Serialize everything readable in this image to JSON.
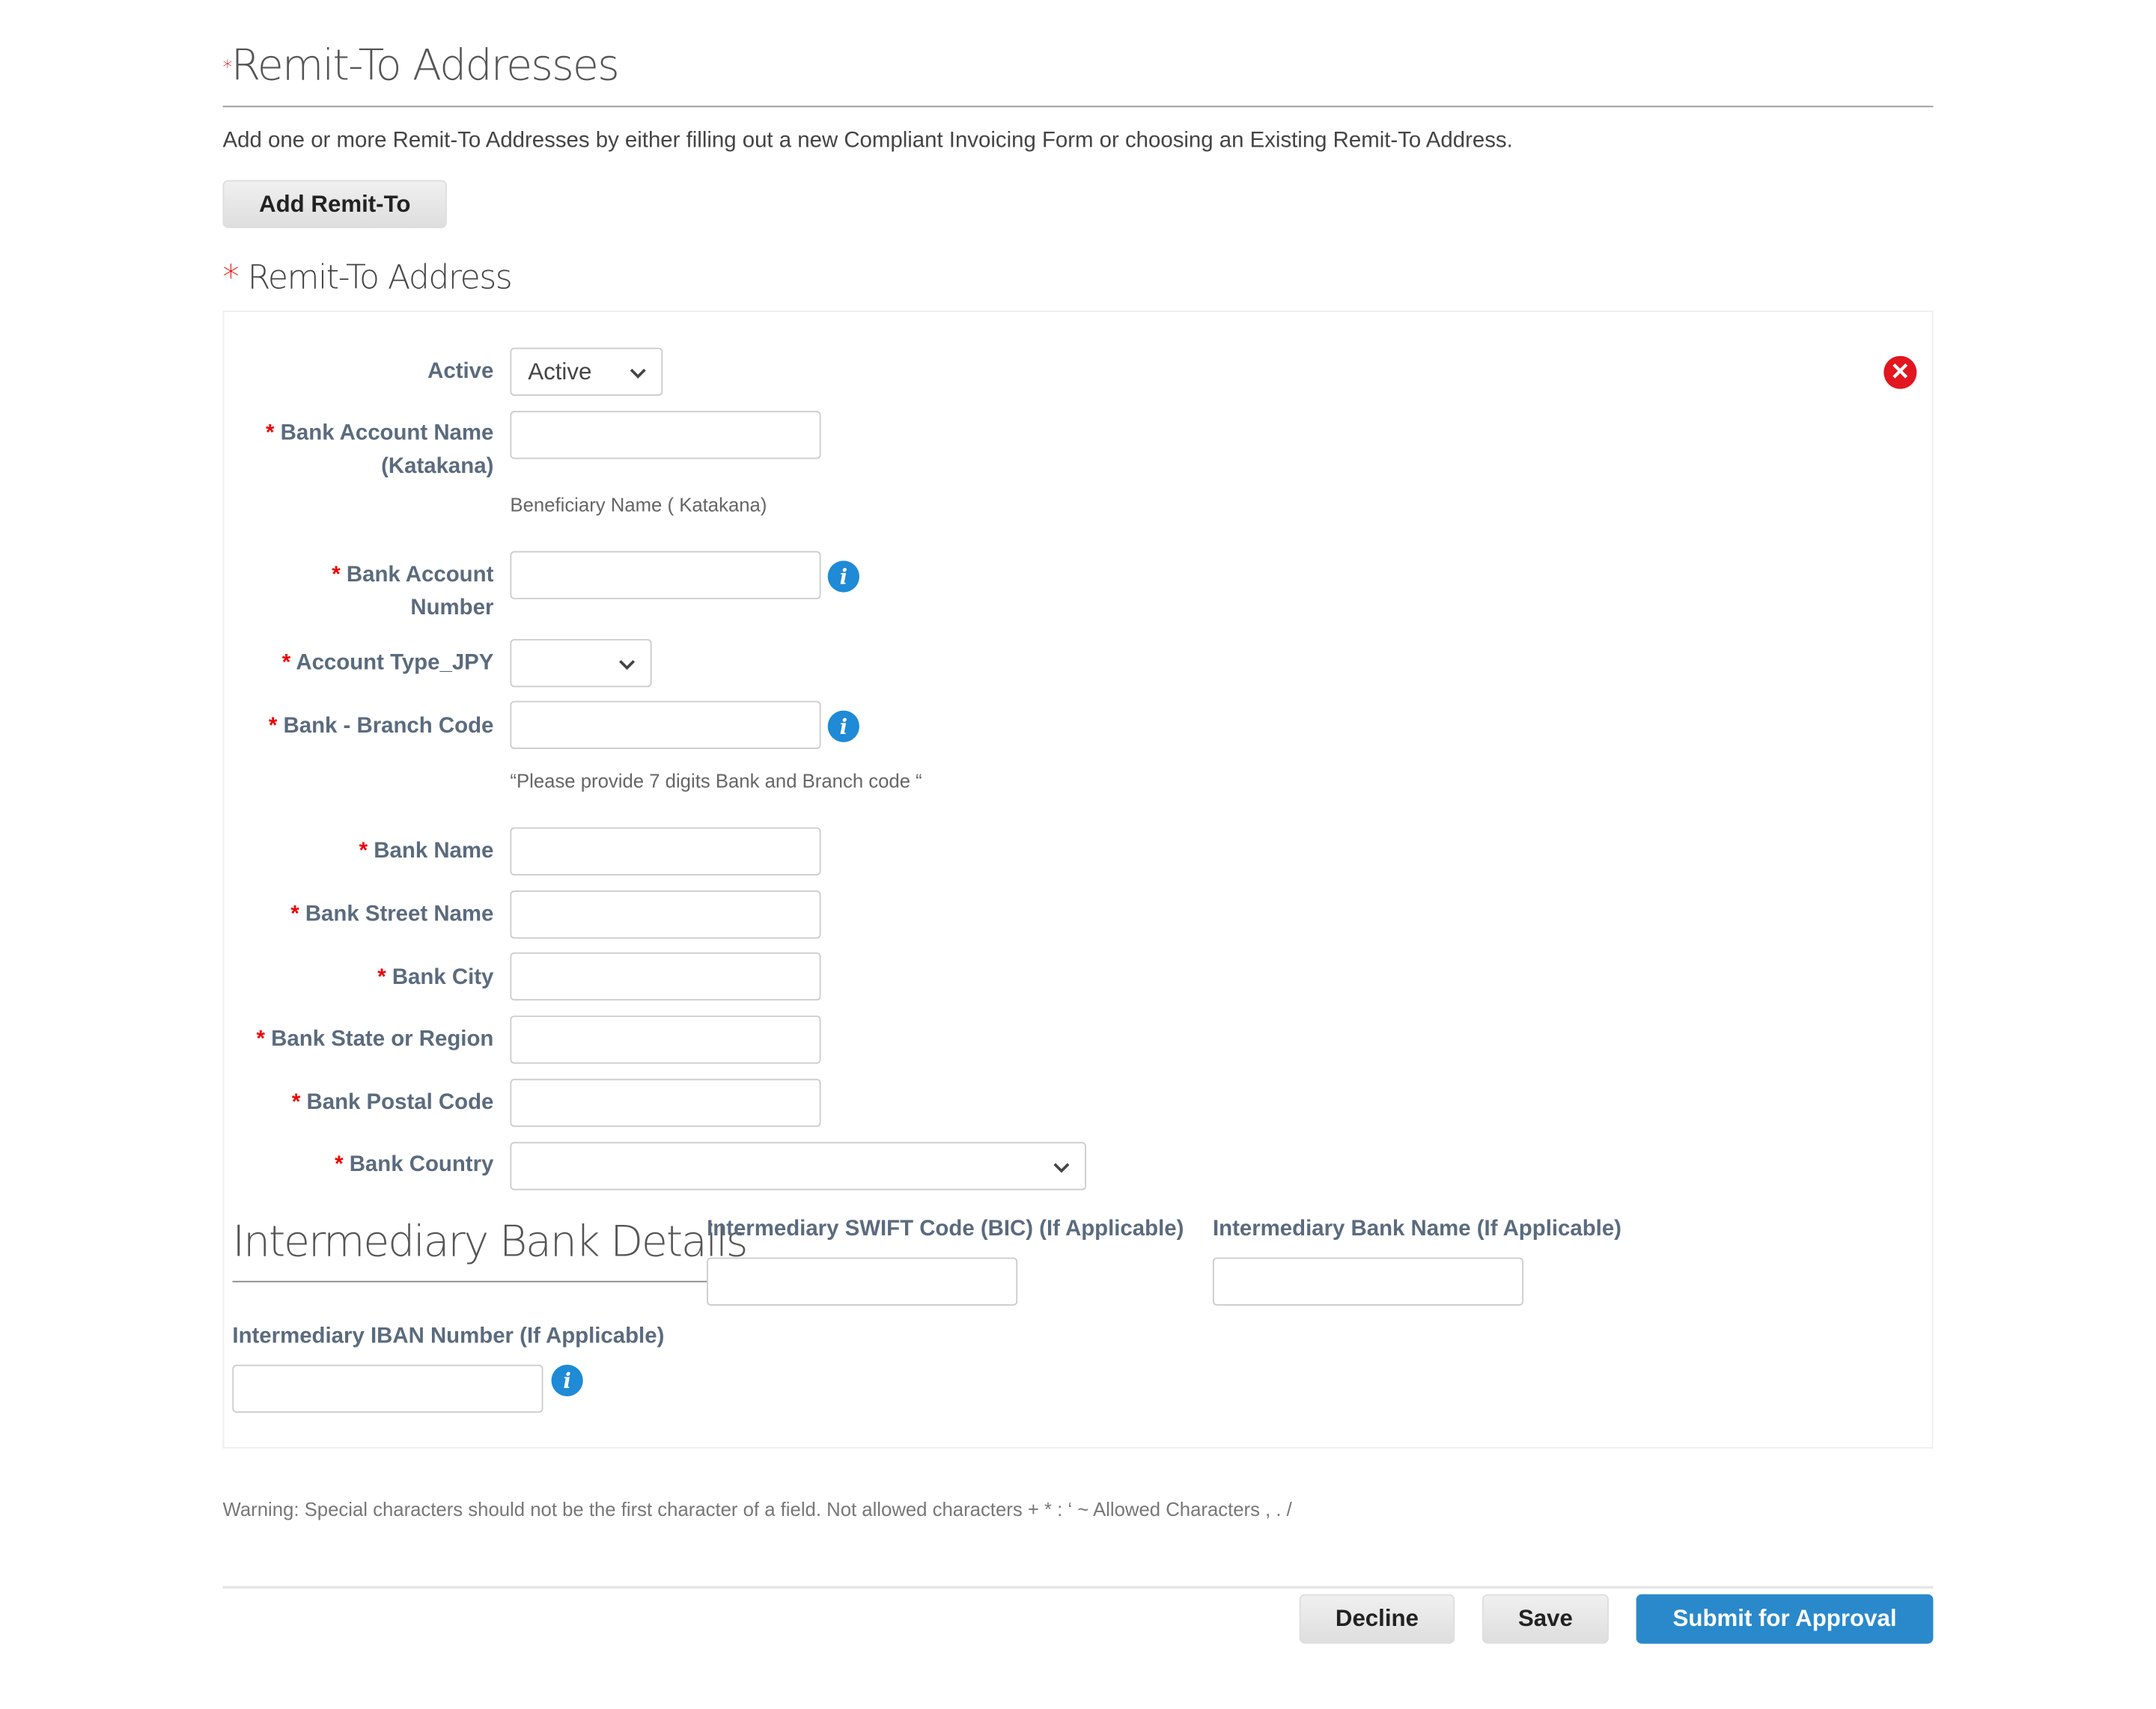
{
  "header": {
    "required_mark": "*",
    "title": "Remit-To Addresses",
    "description": "Add one or more Remit-To Addresses by either filling out a new Compliant Invoicing Form or choosing an Existing Remit-To Address.",
    "add_button": "Add Remit-To"
  },
  "section": {
    "required_mark": "*",
    "title": "Remit-To Address"
  },
  "form": {
    "active": {
      "label": "Active",
      "value": "Active"
    },
    "bank_account_name": {
      "label_line1": "Bank Account Name",
      "label_line2": "(Katakana)",
      "value": "",
      "hint": "Beneficiary Name ( Katakana)"
    },
    "bank_account_number": {
      "label_line1": "Bank Account",
      "label_line2": "Number",
      "value": ""
    },
    "account_type": {
      "label": "Account Type_JPY",
      "value": ""
    },
    "branch_code": {
      "label": "Bank - Branch Code",
      "value": "",
      "hint": "“Please provide 7 digits Bank and Branch code “"
    },
    "bank_name": {
      "label": "Bank Name",
      "value": ""
    },
    "bank_street": {
      "label": "Bank Street Name",
      "value": ""
    },
    "bank_city": {
      "label": "Bank City",
      "value": ""
    },
    "bank_state": {
      "label": "Bank State or Region",
      "value": ""
    },
    "bank_postal": {
      "label": "Bank Postal Code",
      "value": ""
    },
    "bank_country": {
      "label": "Bank Country",
      "value": ""
    },
    "required_mark": "*",
    "info_glyph": "i",
    "close_glyph": "✕"
  },
  "intermediary": {
    "title": "Intermediary Bank Details",
    "swift_label": "Intermediary SWIFT Code (BIC) (If Applicable)",
    "bank_name_label": "Intermediary Bank Name (If Applicable)",
    "iban_label": "Intermediary IBAN Number (If Applicable)"
  },
  "warning": "Warning: Special characters should not be the first character of a field. Not allowed characters + * : ‘ ~ Allowed Characters , . /",
  "footer": {
    "decline": "Decline",
    "save": "Save",
    "submit": "Submit for Approval"
  },
  "colors": {
    "accent": "#2a89cb",
    "required": "#e00000",
    "label": "#5b6b7e",
    "close": "#e2161f"
  }
}
